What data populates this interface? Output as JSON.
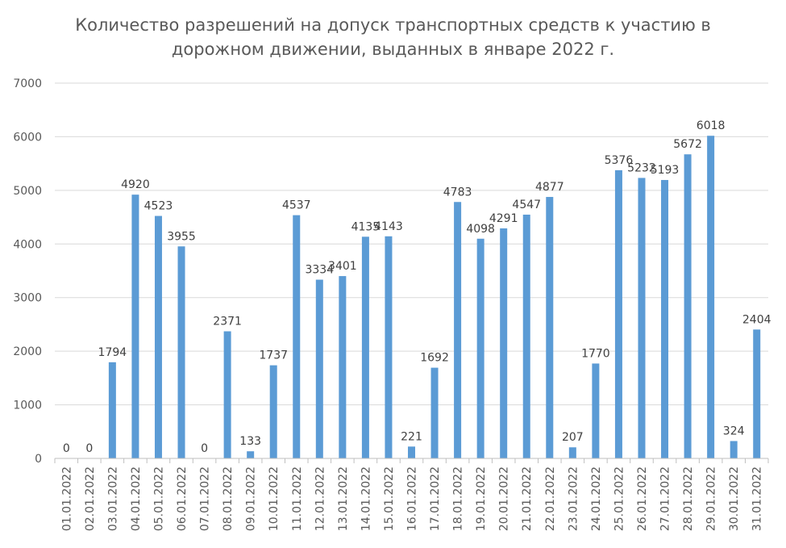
{
  "chart_data": {
    "type": "bar",
    "title_lines": [
      "Количество разрешений на допуск транспортных средств к участию в",
      "дорожном движении, выданных в январе 2022 г."
    ],
    "xlabel": "",
    "ylabel": "",
    "ylim": [
      0,
      7000
    ],
    "yticks": [
      "0",
      "1000",
      "2000",
      "3000",
      "4000",
      "5000",
      "6000",
      "7000"
    ],
    "grid": true,
    "legend": "none",
    "bar_color": "#5B9BD5",
    "categories": [
      "01.01.2022",
      "02.01.2022",
      "03.01.2022",
      "04.01.2022",
      "05.01.2022",
      "06.01.2022",
      "07.01.2022",
      "08.01.2022",
      "09.01.2022",
      "10.01.2022",
      "11.01.2022",
      "12.01.2022",
      "13.01.2022",
      "14.01.2022",
      "15.01.2022",
      "16.01.2022",
      "17.01.2022",
      "18.01.2022",
      "19.01.2022",
      "20.01.2022",
      "21.01.2022",
      "22.01.2022",
      "23.01.2022",
      "24.01.2022",
      "25.01.2022",
      "26.01.2022",
      "27.01.2022",
      "28.01.2022",
      "29.01.2022",
      "30.01.2022",
      "31.01.2022"
    ],
    "values": [
      0,
      0,
      1794,
      4920,
      4523,
      3955,
      0,
      2371,
      133,
      1737,
      4537,
      3334,
      3401,
      4135,
      4143,
      221,
      1692,
      4783,
      4098,
      4291,
      4547,
      4877,
      207,
      1770,
      5376,
      5232,
      5193,
      5672,
      6018,
      324,
      2404
    ],
    "data_labels": [
      "0",
      "0",
      "1794",
      "4920",
      "4523",
      "3955",
      "0",
      "2371",
      "133",
      "1737",
      "4537",
      "3334",
      "3401",
      "4135",
      "4143",
      "221",
      "1692",
      "4783",
      "4098",
      "4291",
      "4547",
      "4877",
      "207",
      "1770",
      "5376",
      "5232",
      "5193",
      "5672",
      "6018",
      "324",
      "2404"
    ]
  }
}
